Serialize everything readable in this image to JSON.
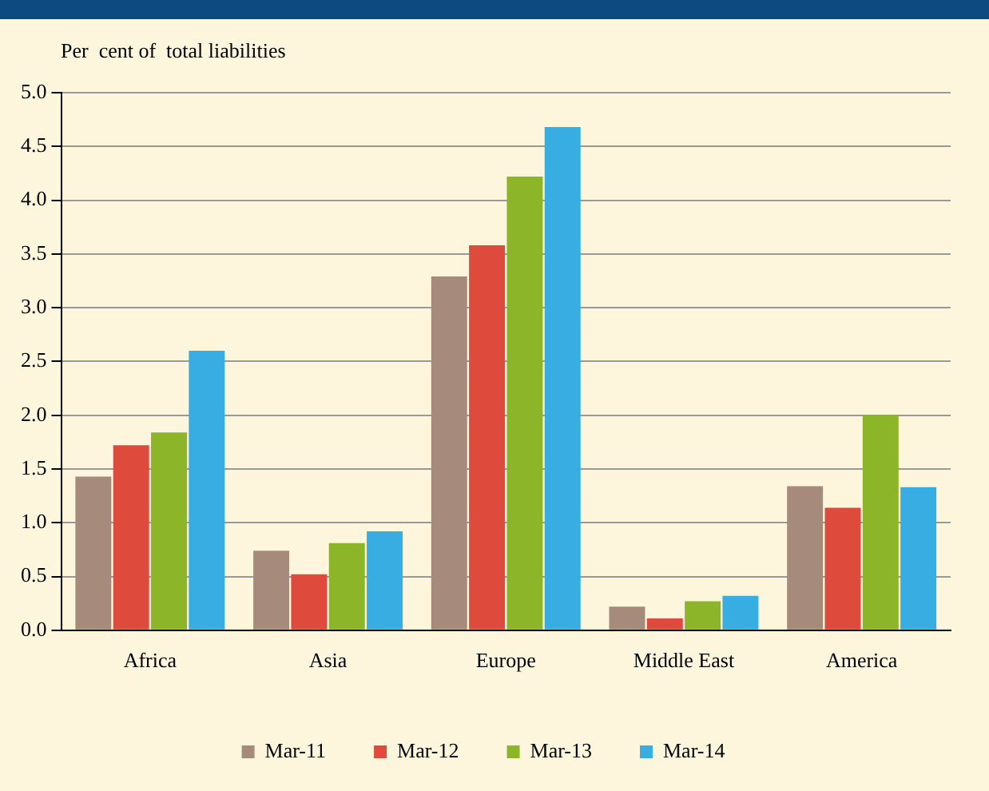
{
  "chart_data": {
    "type": "bar",
    "ylabel": "Per  cent of  total liabilities",
    "categories": [
      "Africa",
      "Asia",
      "Europe",
      "Middle East",
      "America"
    ],
    "series": [
      {
        "name": "Mar-11",
        "color": "#a68b7c",
        "values": [
          1.43,
          0.74,
          3.29,
          0.22,
          1.34
        ]
      },
      {
        "name": "Mar-12",
        "color": "#de4b3c",
        "values": [
          1.72,
          0.52,
          3.58,
          0.11,
          1.14
        ]
      },
      {
        "name": "Mar-13",
        "color": "#8db52a",
        "values": [
          1.84,
          0.81,
          4.22,
          0.27,
          2.0
        ]
      },
      {
        "name": "Mar-14",
        "color": "#38ade2",
        "values": [
          2.6,
          0.92,
          4.68,
          0.32,
          1.33
        ]
      }
    ],
    "ylim": [
      0,
      5
    ],
    "yticks": [
      {
        "value": 0,
        "label": "0.0"
      },
      {
        "value": 0.5,
        "label": "0.5"
      },
      {
        "value": 1,
        "label": "1.0"
      },
      {
        "value": 1.5,
        "label": "1.5"
      },
      {
        "value": 2,
        "label": "2.0"
      },
      {
        "value": 2.5,
        "label": "2.5"
      },
      {
        "value": 3,
        "label": "3.0"
      },
      {
        "value": 3.5,
        "label": "3.5"
      },
      {
        "value": 4,
        "label": "4.0"
      },
      {
        "value": 4.5,
        "label": "4.5"
      },
      {
        "value": 5,
        "label": "5.0"
      }
    ],
    "grid": "y",
    "legend": "bottom"
  }
}
